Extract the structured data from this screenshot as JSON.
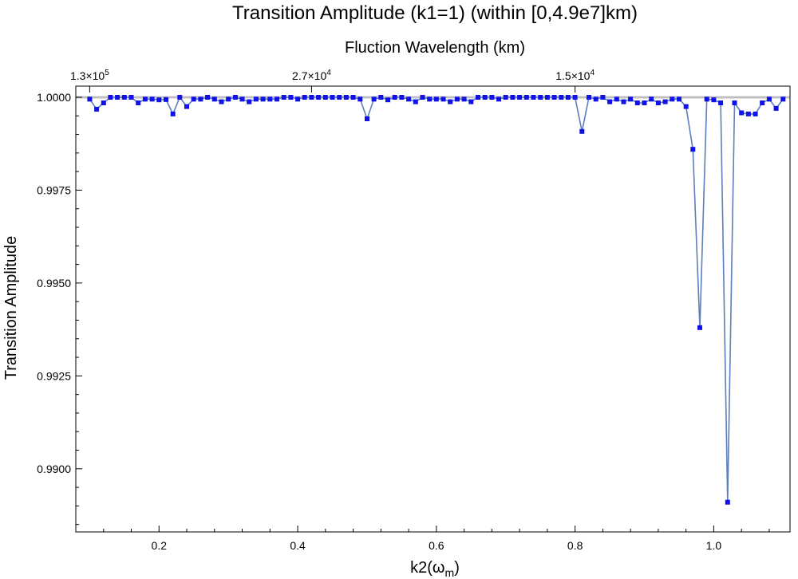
{
  "chart_data": {
    "type": "line",
    "title": "Transition Amplitude (k1=1) (within [0,4.9e7]km)",
    "xlabel": "k2(ω",
    "xlabel_sub": "m",
    "xlabel_close": ")",
    "ylabel": "Transition Amplitude",
    "top_axis_label": "Fluction Wavelength (km)",
    "xlim": [
      0.08,
      1.11
    ],
    "ylim": [
      0.9883,
      1.0003
    ],
    "x_ticks": [
      {
        "value": 0.2,
        "label": "0.2"
      },
      {
        "value": 0.4,
        "label": "0.4"
      },
      {
        "value": 0.6,
        "label": "0.6"
      },
      {
        "value": 0.8,
        "label": "0.8"
      },
      {
        "value": 1.0,
        "label": "1.0"
      }
    ],
    "y_ticks": [
      {
        "value": 1.0,
        "label": "1.0000"
      },
      {
        "value": 0.9975,
        "label": "0.9975"
      },
      {
        "value": 0.995,
        "label": "0.9950"
      },
      {
        "value": 0.9925,
        "label": "0.9925"
      },
      {
        "value": 0.99,
        "label": "0.9900"
      }
    ],
    "top_ticks": [
      {
        "k2": 0.1,
        "mantissa": "1.3",
        "exponent": "5"
      },
      {
        "k2": 0.42,
        "mantissa": "2.7",
        "exponent": "4"
      },
      {
        "k2": 0.8,
        "mantissa": "1.5",
        "exponent": "4"
      }
    ],
    "reference_line": 1.0,
    "colors": {
      "line": "#5b7fbf",
      "marker": "#1010e8",
      "reference": "#c0c0c0",
      "frame": "#000000"
    },
    "series": [
      {
        "x": [
          0.1,
          0.11,
          0.12,
          0.13,
          0.14,
          0.15,
          0.16,
          0.17,
          0.18,
          0.19,
          0.2,
          0.21,
          0.22,
          0.23,
          0.24,
          0.25,
          0.26,
          0.27,
          0.28,
          0.29,
          0.3,
          0.31,
          0.32,
          0.33,
          0.34,
          0.35,
          0.36,
          0.37,
          0.38,
          0.39,
          0.4,
          0.41,
          0.42,
          0.43,
          0.44,
          0.45,
          0.46,
          0.47,
          0.48,
          0.49,
          0.5,
          0.51,
          0.52,
          0.53,
          0.54,
          0.55,
          0.56,
          0.57,
          0.58,
          0.59,
          0.6,
          0.61,
          0.62,
          0.63,
          0.64,
          0.65,
          0.66,
          0.67,
          0.68,
          0.69,
          0.7,
          0.71,
          0.72,
          0.73,
          0.74,
          0.75,
          0.76,
          0.77,
          0.78,
          0.79,
          0.8,
          0.81,
          0.82,
          0.83,
          0.84,
          0.85,
          0.86,
          0.87,
          0.88,
          0.89,
          0.9,
          0.91,
          0.92,
          0.93,
          0.94,
          0.95,
          0.96,
          0.97,
          0.98,
          0.99,
          1.0,
          1.01,
          1.02,
          1.03,
          1.04,
          1.05,
          1.06,
          1.07,
          1.08,
          1.09,
          1.1
        ],
        "y": [
          0.99995,
          0.99968,
          0.99985,
          1.0,
          1.0,
          1.0,
          1.0,
          0.99985,
          0.99995,
          0.99995,
          0.99993,
          0.99994,
          0.99955,
          1.0,
          0.99975,
          0.99995,
          0.99995,
          1.0,
          0.99995,
          0.99988,
          0.99995,
          1.0,
          0.99995,
          0.99988,
          0.99995,
          0.99995,
          0.99995,
          0.99995,
          1.0,
          1.0,
          0.99995,
          1.0,
          1.0,
          1.0,
          1.0,
          1.0,
          1.0,
          1.0,
          1.0,
          0.99995,
          0.99942,
          0.99995,
          1.0,
          0.99993,
          1.0,
          1.0,
          0.99995,
          0.99988,
          1.0,
          0.99995,
          0.99995,
          0.99995,
          0.99988,
          0.99995,
          0.99995,
          0.99988,
          1.0,
          1.0,
          1.0,
          0.99995,
          1.0,
          1.0,
          1.0,
          1.0,
          1.0,
          1.0,
          1.0,
          1.0,
          1.0,
          1.0,
          1.0,
          0.99908,
          1.0,
          0.99995,
          1.0,
          0.99988,
          0.99995,
          0.99988,
          0.99995,
          0.99985,
          0.99985,
          0.99995,
          0.99985,
          0.99988,
          0.99995,
          0.99995,
          0.99975,
          0.9986,
          0.9938,
          0.99995,
          0.99993,
          0.99985,
          0.9891,
          0.99985,
          0.99958,
          0.99955,
          0.99955,
          0.99985,
          0.99995,
          0.9997,
          0.99995
        ]
      }
    ]
  }
}
